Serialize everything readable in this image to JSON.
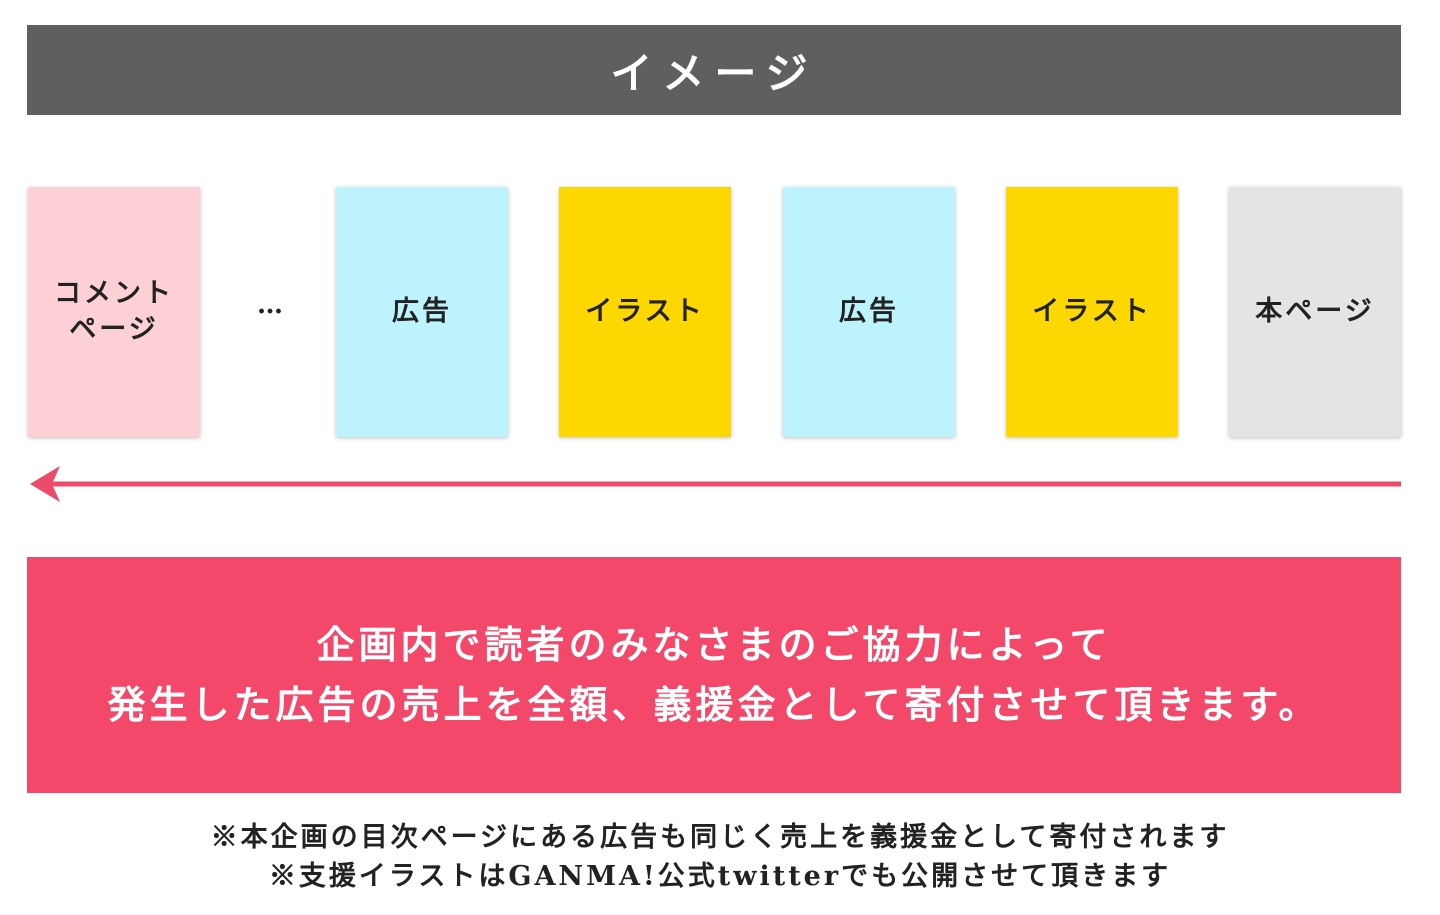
{
  "header": {
    "title": "イメージ"
  },
  "sequence": [
    {
      "lines": [
        "コメント",
        "ページ"
      ]
    },
    {
      "lines": [
        "…"
      ]
    },
    {
      "lines": [
        "広告"
      ]
    },
    {
      "lines": [
        "イラスト"
      ]
    },
    {
      "lines": [
        "広告"
      ]
    },
    {
      "lines": [
        "イラスト"
      ]
    },
    {
      "lines": [
        "本ページ"
      ]
    }
  ],
  "notice": {
    "lines": [
      "企画内で読者のみなさまのご協力によって",
      "発生した広告の売上を全額、義援金として寄付させて頂きます。"
    ]
  },
  "footnotes": [
    "※本企画の目次ページにある広告も同じく売上を義援金として寄付されます",
    "※支援イラストはGANMA!公式twitterでも公開させて頂きます"
  ]
}
